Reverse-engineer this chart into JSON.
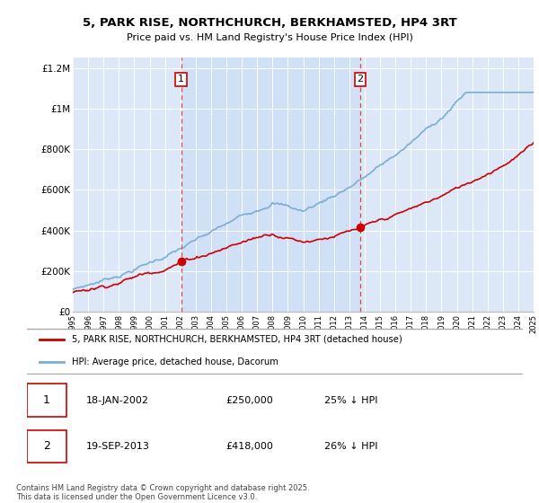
{
  "title": "5, PARK RISE, NORTHCHURCH, BERKHAMSTED, HP4 3RT",
  "subtitle": "Price paid vs. HM Land Registry's House Price Index (HPI)",
  "background_color": "#ffffff",
  "plot_bg_color": "#dce8f8",
  "shade_color": "#c8dbf5",
  "red_line_label": "5, PARK RISE, NORTHCHURCH, BERKHAMSTED, HP4 3RT (detached house)",
  "blue_line_label": "HPI: Average price, detached house, Dacorum",
  "annotation1_date": "18-JAN-2002",
  "annotation1_price": "£250,000",
  "annotation1_hpi": "25% ↓ HPI",
  "annotation2_date": "19-SEP-2013",
  "annotation2_price": "£418,000",
  "annotation2_hpi": "26% ↓ HPI",
  "footer": "Contains HM Land Registry data © Crown copyright and database right 2025.\nThis data is licensed under the Open Government Licence v3.0.",
  "ylim": [
    0,
    1250000
  ],
  "yticks": [
    0,
    200000,
    400000,
    600000,
    800000,
    1000000,
    1200000
  ],
  "ytick_labels": [
    "£0",
    "£200K",
    "£400K",
    "£600K",
    "£800K",
    "£1M",
    "£1.2M"
  ],
  "x_start_year": 1995,
  "x_end_year": 2025,
  "sale1_year": 2002.05,
  "sale1_price": 250000,
  "sale2_year": 2013.72,
  "sale2_price": 418000,
  "red_color": "#cc0000",
  "blue_color": "#7aadd4",
  "annotation_box_color": "#cc0000",
  "vline_color": "#dd4444",
  "legend_border_color": "#aaaaaa",
  "grid_color": "#ffffff"
}
